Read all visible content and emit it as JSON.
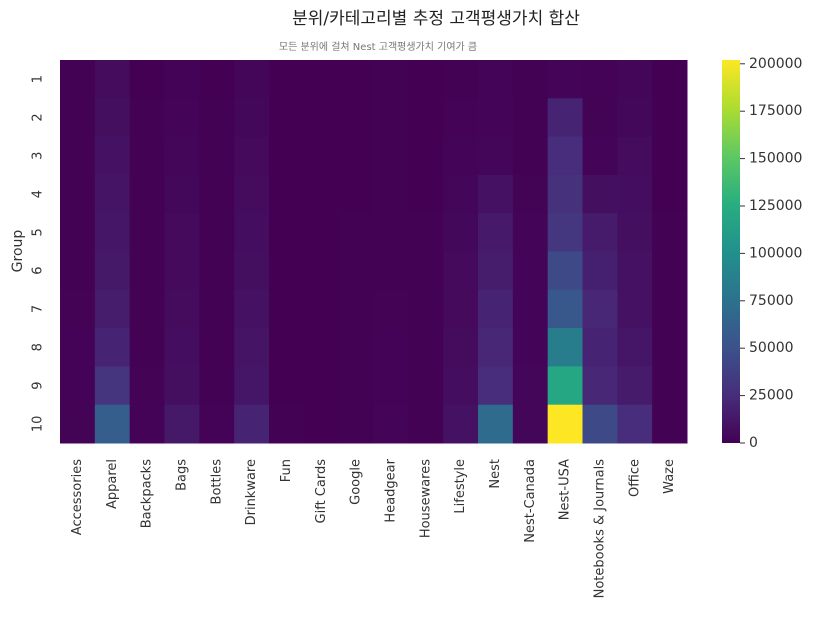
{
  "chart_data": {
    "type": "heatmap",
    "title": "분위/카테고리별 추정 고객평생가치 합산",
    "subtitle": "모든 분위에 걸쳐 Nest 고객평생가치 기여가 큼",
    "y_label": "Group",
    "categories": [
      "Accessories",
      "Apparel",
      "Backpacks",
      "Bags",
      "Bottles",
      "Drinkware",
      "Fun",
      "Gift Cards",
      "Google",
      "Headgear",
      "Housewares",
      "Lifestyle",
      "Nest",
      "Nest-Canada",
      "Nest-USA",
      "Notebooks & Journals",
      "Office",
      "Waze"
    ],
    "groups": [
      "1",
      "2",
      "3",
      "4",
      "5",
      "6",
      "7",
      "8",
      "9",
      "10"
    ],
    "values": [
      [
        300,
        6000,
        200,
        1000,
        200,
        3000,
        50,
        0,
        100,
        300,
        100,
        500,
        2000,
        300,
        2000,
        1000,
        3000,
        100
      ],
      [
        400,
        8000,
        300,
        2000,
        300,
        4000,
        50,
        0,
        100,
        400,
        100,
        1000,
        2500,
        500,
        20000,
        1500,
        4000,
        100
      ],
      [
        500,
        10000,
        400,
        3000,
        300,
        5000,
        100,
        0,
        200,
        500,
        200,
        2000,
        3000,
        800,
        25000,
        2000,
        6000,
        200
      ],
      [
        600,
        11000,
        500,
        4000,
        400,
        6000,
        100,
        0,
        200,
        600,
        200,
        3000,
        10000,
        1500,
        28000,
        8000,
        7000,
        200
      ],
      [
        700,
        12000,
        500,
        5000,
        500,
        7000,
        100,
        0,
        300,
        700,
        300,
        4000,
        14000,
        2000,
        32000,
        15000,
        8000,
        300
      ],
      [
        800,
        13000,
        600,
        5000,
        500,
        8000,
        100,
        0,
        300,
        800,
        300,
        5000,
        16000,
        2000,
        45000,
        18000,
        9000,
        300
      ],
      [
        900,
        16000,
        700,
        6000,
        600,
        9000,
        150,
        0,
        400,
        900,
        400,
        5000,
        20000,
        2500,
        55000,
        22000,
        10000,
        300
      ],
      [
        1000,
        20000,
        800,
        7000,
        700,
        11000,
        150,
        0,
        400,
        1000,
        400,
        6000,
        22000,
        2500,
        85000,
        20000,
        12000,
        400
      ],
      [
        1200,
        30000,
        900,
        8000,
        800,
        12000,
        200,
        0,
        500,
        1200,
        500,
        7000,
        25000,
        3000,
        120000,
        22000,
        15000,
        400
      ],
      [
        1500,
        60000,
        1200,
        13000,
        1000,
        20000,
        300,
        100,
        700,
        2000,
        700,
        9000,
        70000,
        3000,
        202000,
        45000,
        25000,
        500
      ]
    ],
    "colormap": "viridis",
    "clim": [
      0,
      202000
    ],
    "cticks": [
      0,
      25000,
      50000,
      75000,
      100000,
      125000,
      150000,
      175000,
      200000
    ]
  }
}
